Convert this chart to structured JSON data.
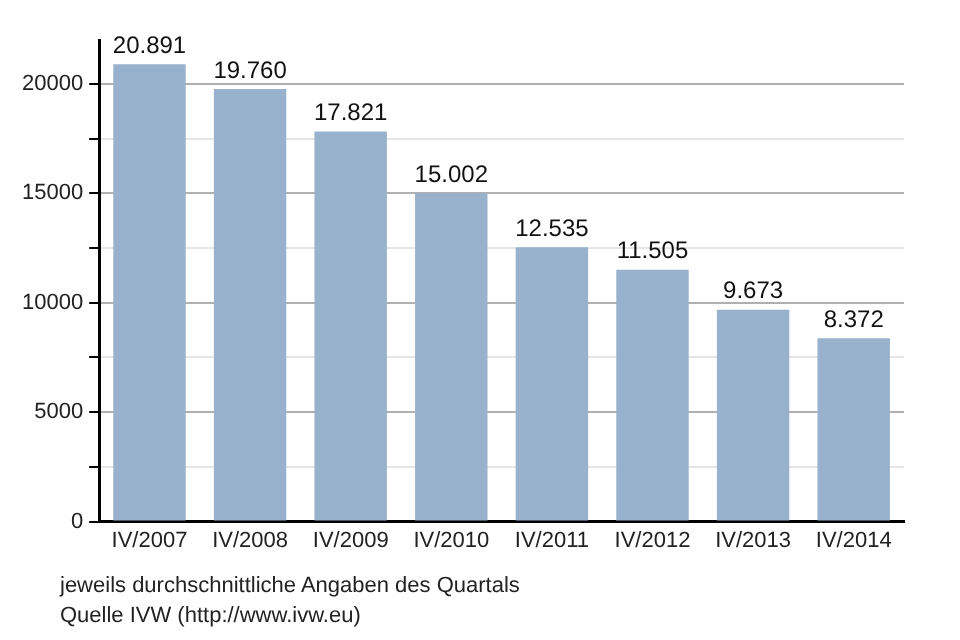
{
  "chart_data": {
    "type": "bar",
    "categories": [
      "IV/2007",
      "IV/2008",
      "IV/2009",
      "IV/2010",
      "IV/2011",
      "IV/2012",
      "IV/2013",
      "IV/2014"
    ],
    "values": [
      20891,
      19760,
      17821,
      15002,
      12535,
      11505,
      9673,
      8372
    ],
    "value_labels": [
      "20.891",
      "19.760",
      "17.821",
      "15.002",
      "12.535",
      "11.505",
      "9.673",
      "8.372"
    ],
    "color": "#98b1cc",
    "ylim": [
      0,
      22000
    ],
    "yticks": [
      0,
      {
        "value": 2500,
        "label": null
      },
      5000,
      {
        "value": 7500,
        "label": null
      },
      10000,
      {
        "value": 12500,
        "label": null
      },
      15000,
      {
        "value": 17500,
        "label": null
      },
      20000
    ],
    "grid": "y",
    "annotations": [
      "jeweils durchschnittliche Angaben des Quartals",
      "Quelle IVW (http://www.ivw.eu)"
    ]
  }
}
